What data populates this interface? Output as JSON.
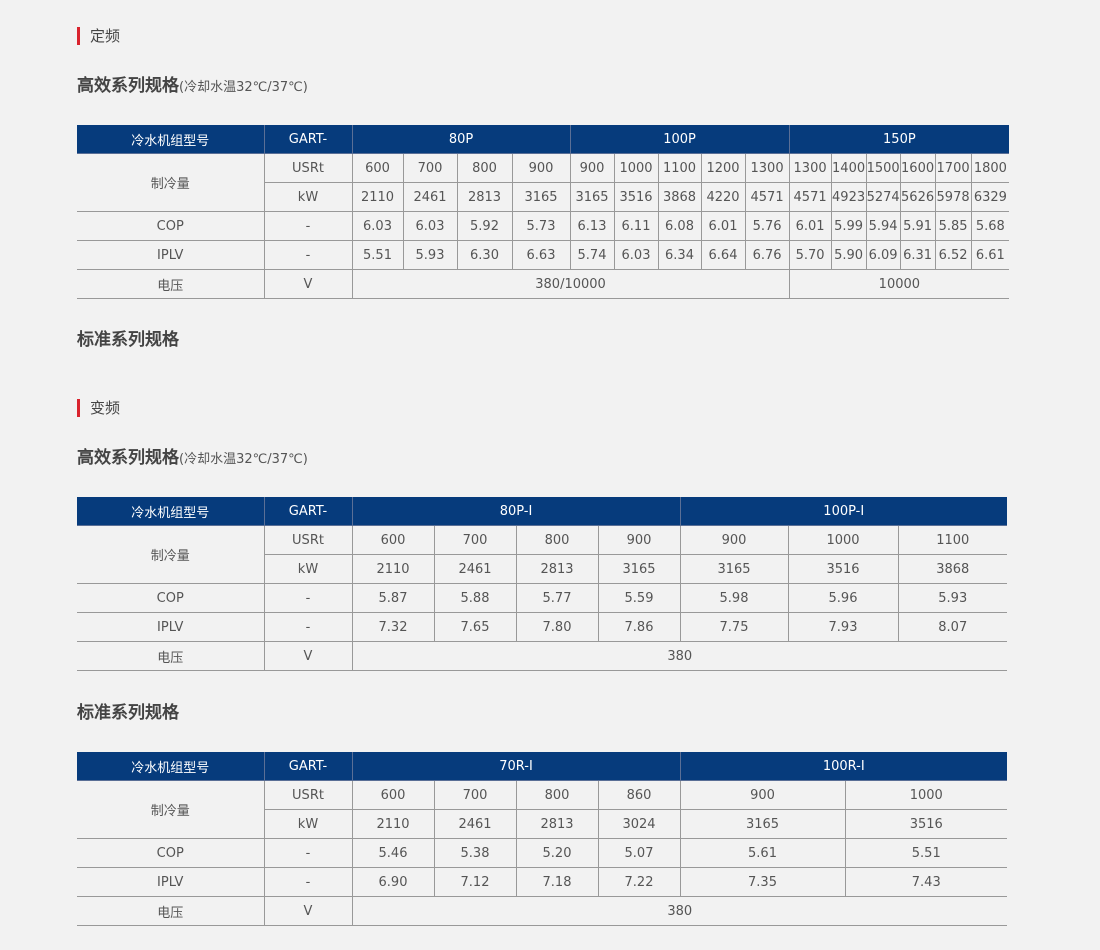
{
  "sections": [
    {
      "title": "定频",
      "top": 0
    },
    {
      "title": "变频"
    }
  ],
  "labels": {
    "model": "冷水机组型号",
    "prefix": "GART-",
    "cooling": "制冷量",
    "usrt": "USRt",
    "kw": "kW",
    "cop": "COP",
    "iplv": "IPLV",
    "voltage": "电压",
    "dash": "-",
    "v": "V",
    "high_eff": "高效系列规格",
    "high_eff_note": "(冷却水温32℃/37℃)",
    "standard": "标准系列规格"
  },
  "colors": {
    "header_bg": "#063b7c",
    "accent": "#d9232d",
    "background": "#f2f2f2"
  },
  "tables": [
    {
      "groups": [
        {
          "name": "80P",
          "span": 4
        },
        {
          "name": "100P",
          "span": 5
        },
        {
          "name": "150P",
          "span": 6
        }
      ],
      "usrt": [
        "600",
        "700",
        "800",
        "900",
        "900",
        "1000",
        "1100",
        "1200",
        "1300",
        "1300",
        "1400",
        "1500",
        "1600",
        "1700",
        "1800"
      ],
      "kw": [
        "2110",
        "2461",
        "2813",
        "3165",
        "3165",
        "3516",
        "3868",
        "4220",
        "4571",
        "4571",
        "4923",
        "5274",
        "5626",
        "5978",
        "6329"
      ],
      "cop": [
        "6.03",
        "6.03",
        "5.92",
        "5.73",
        "6.13",
        "6.11",
        "6.08",
        "6.01",
        "5.76",
        "6.01",
        "5.99",
        "5.94",
        "5.91",
        "5.85",
        "5.68"
      ],
      "iplv": [
        "5.51",
        "5.93",
        "6.30",
        "6.63",
        "5.74",
        "6.03",
        "6.34",
        "6.64",
        "6.76",
        "5.70",
        "5.90",
        "6.09",
        "6.31",
        "6.52",
        "6.61"
      ],
      "voltage": [
        {
          "value": "380/10000",
          "span": 9
        },
        {
          "value": "10000",
          "span": 6
        }
      ]
    },
    {
      "groups": [
        {
          "name": "80P-I",
          "span": 4
        },
        {
          "name": "100P-I",
          "span": 3
        }
      ],
      "usrt": [
        "600",
        "700",
        "800",
        "900",
        "900",
        "1000",
        "1100"
      ],
      "kw": [
        "2110",
        "2461",
        "2813",
        "3165",
        "3165",
        "3516",
        "3868"
      ],
      "cop": [
        "5.87",
        "5.88",
        "5.77",
        "5.59",
        "5.98",
        "5.96",
        "5.93"
      ],
      "iplv": [
        "7.32",
        "7.65",
        "7.80",
        "7.86",
        "7.75",
        "7.93",
        "8.07"
      ],
      "voltage": [
        {
          "value": "380",
          "span": 7
        }
      ]
    },
    {
      "groups": [
        {
          "name": "70R-I",
          "span": 4
        },
        {
          "name": "100R-I",
          "span": 2
        }
      ],
      "usrt": [
        "600",
        "700",
        "800",
        "860",
        "900",
        "1000"
      ],
      "kw": [
        "2110",
        "2461",
        "2813",
        "3024",
        "3165",
        "3516"
      ],
      "cop": [
        "5.46",
        "5.38",
        "5.20",
        "5.07",
        "5.61",
        "5.51"
      ],
      "iplv": [
        "6.90",
        "7.12",
        "7.18",
        "7.22",
        "7.35",
        "7.43"
      ],
      "voltage": [
        {
          "value": "380",
          "span": 6
        }
      ]
    }
  ]
}
